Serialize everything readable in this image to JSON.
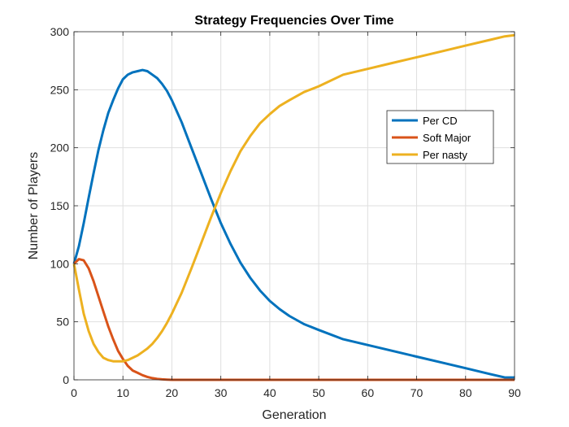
{
  "chart_data": {
    "type": "line",
    "title": "Strategy Frequencies Over Time",
    "xlabel": "Generation",
    "ylabel": "Number of Players",
    "xlim": [
      0,
      90
    ],
    "ylim": [
      0,
      300
    ],
    "xticks": [
      0,
      10,
      20,
      30,
      40,
      50,
      60,
      70,
      80,
      90
    ],
    "yticks": [
      0,
      50,
      100,
      150,
      200,
      250,
      300
    ],
    "grid": true,
    "legend_position": "upper-right",
    "series": [
      {
        "name": "Per CD",
        "color": "#0072BD",
        "x": [
          0,
          1,
          2,
          3,
          4,
          5,
          6,
          7,
          8,
          9,
          10,
          11,
          12,
          13,
          14,
          15,
          16,
          17,
          18,
          19,
          20,
          22,
          24,
          26,
          28,
          30,
          32,
          34,
          36,
          38,
          40,
          42,
          44,
          47,
          50,
          55,
          60,
          65,
          70,
          75,
          80,
          85,
          88,
          90
        ],
        "y": [
          100,
          115,
          135,
          157,
          178,
          198,
          215,
          230,
          241,
          251,
          259,
          263,
          265,
          266,
          267,
          266,
          263,
          260,
          255,
          249,
          241,
          222,
          200,
          178,
          156,
          135,
          117,
          101,
          88,
          77,
          68,
          61,
          55,
          48,
          43,
          35,
          30,
          25,
          20,
          15,
          10,
          5,
          2,
          2
        ]
      },
      {
        "name": "Soft Major",
        "color": "#D95319",
        "x": [
          0,
          1,
          2,
          3,
          4,
          5,
          6,
          7,
          8,
          9,
          10,
          11,
          12,
          13,
          14,
          15,
          16,
          17,
          18,
          19,
          20,
          25,
          30,
          40,
          50,
          60,
          70,
          80,
          90
        ],
        "y": [
          100,
          104,
          103,
          96,
          85,
          72,
          59,
          46,
          35,
          25,
          18,
          12,
          8,
          6,
          4,
          2.5,
          1.5,
          0.8,
          0.4,
          0.2,
          0,
          0,
          0,
          0,
          0,
          0,
          0,
          0,
          0
        ]
      },
      {
        "name": "Per nasty",
        "color": "#EDB120",
        "x": [
          0,
          1,
          2,
          3,
          4,
          5,
          6,
          7,
          8,
          9,
          10,
          11,
          12,
          13,
          14,
          15,
          16,
          17,
          18,
          19,
          20,
          22,
          24,
          26,
          28,
          30,
          32,
          34,
          36,
          38,
          40,
          42,
          44,
          47,
          50,
          55,
          60,
          65,
          70,
          75,
          80,
          85,
          88,
          90
        ],
        "y": [
          100,
          78,
          57,
          42,
          31,
          24,
          19,
          17,
          16,
          16,
          16,
          17,
          19,
          21,
          24,
          27,
          31,
          36,
          42,
          49,
          57,
          75,
          96,
          118,
          140,
          161,
          180,
          197,
          210,
          221,
          229,
          236,
          241,
          248,
          253,
          263,
          268,
          273,
          278,
          283,
          288,
          293,
          296,
          297
        ]
      }
    ]
  }
}
